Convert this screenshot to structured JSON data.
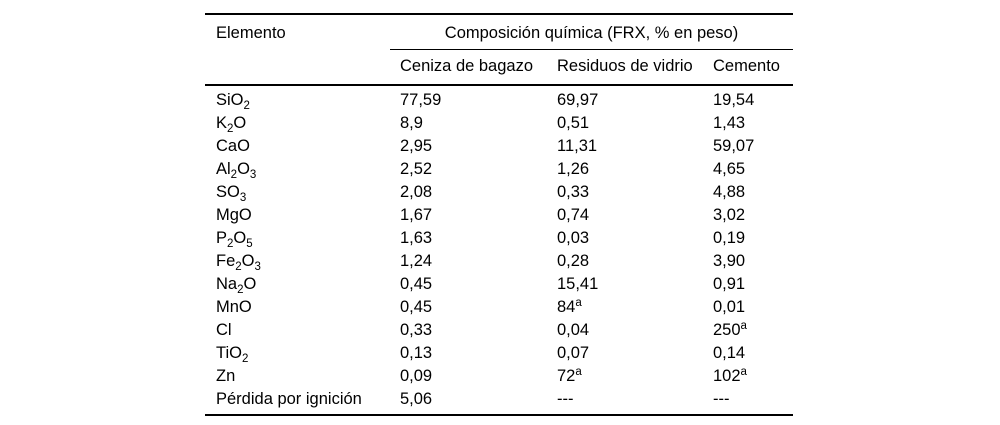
{
  "table": {
    "col1_header": "Elemento",
    "group_header": "Composición química (FRX, % en peso)",
    "columns": [
      "Ceniza de bagazo",
      "Residuos de vidrio",
      "Cemento"
    ],
    "footnote_marker": "a",
    "rows": [
      {
        "element": "SiO_2",
        "values": [
          "77,59",
          "69,97",
          "19,54"
        ]
      },
      {
        "element": "K_2O",
        "values": [
          "8,9",
          "0,51",
          "1,43"
        ]
      },
      {
        "element": "CaO",
        "values": [
          "2,95",
          "11,31",
          "59,07"
        ]
      },
      {
        "element": "Al_2O_3",
        "values": [
          "2,52",
          "1,26",
          "4,65"
        ]
      },
      {
        "element": "SO_3",
        "values": [
          "2,08",
          "0,33",
          "4,88"
        ]
      },
      {
        "element": "MgO",
        "values": [
          "1,67",
          "0,74",
          "3,02"
        ]
      },
      {
        "element": "P_2O_5",
        "values": [
          "1,63",
          "0,03",
          "0,19"
        ]
      },
      {
        "element": "Fe_2O_3",
        "values": [
          "1,24",
          "0,28",
          "3,90"
        ]
      },
      {
        "element": "Na_2O",
        "values": [
          "0,45",
          "15,41",
          "0,91"
        ]
      },
      {
        "element": "MnO",
        "values": [
          "0,45",
          "84^a",
          "0,01"
        ]
      },
      {
        "element": "Cl",
        "values": [
          "0,33",
          "0,04",
          "250^a"
        ]
      },
      {
        "element": "TiO_2",
        "values": [
          "0,13",
          "0,07",
          "0,14"
        ]
      },
      {
        "element": "Zn",
        "values": [
          "0,09",
          "72^a",
          "102^a"
        ]
      },
      {
        "element": "Pérdida por ignición",
        "values": [
          "5,06",
          "---",
          "---"
        ]
      }
    ]
  }
}
